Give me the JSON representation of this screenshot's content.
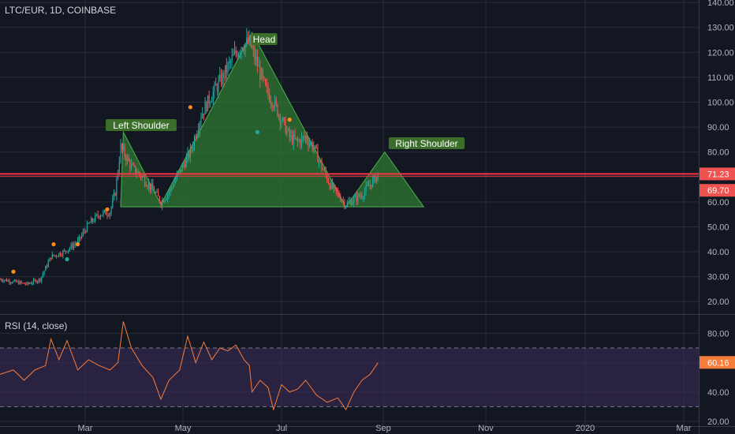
{
  "header": {
    "symbol_line": "LTC/EUR, 1D, COINBASE"
  },
  "rsi_panel": {
    "title": "RSI (14, close)"
  },
  "annotations": {
    "head": "Head",
    "left_shoulder": "Left Shoulder",
    "right_shoulder": "Right Shoulder"
  },
  "price_badges": {
    "resistance": "71.23",
    "last": "69.70"
  },
  "rsi_badge": "60.16",
  "colors": {
    "background": "#131722",
    "grid": "#2a2e39",
    "up": "#26a69a",
    "down": "#ef5350",
    "pattern_fill": "#2f7d32",
    "resistance_line": "#f23645",
    "rsi_line": "#f57c3a",
    "rsi_band": "#3b2a57",
    "label_bg": "#3a6e2a",
    "marker_orange": "#ff8c1a",
    "marker_teal": "#26a69a"
  },
  "chart_data": [
    {
      "type": "candlestick",
      "title": "LTC/EUR, 1D, COINBASE",
      "x_ticks": [
        "Mar",
        "May",
        "Jul",
        "Sep",
        "Nov",
        "2020",
        "Mar"
      ],
      "y_ticks": [
        "140.00",
        "130.00",
        "120.00",
        "110.00",
        "100.00",
        "90.00",
        "80.00",
        "70.00",
        "60.00",
        "50.00",
        "40.00",
        "30.00",
        "20.00"
      ],
      "ylim": [
        15,
        141
      ],
      "grid": true,
      "resistance_level": 71.23,
      "last_price": 69.7,
      "trend": [
        {
          "day": 0,
          "v": 29
        },
        {
          "day": 20,
          "v": 27
        },
        {
          "day": 30,
          "v": 29
        },
        {
          "day": 38,
          "v": 38
        },
        {
          "day": 48,
          "v": 40
        },
        {
          "day": 58,
          "v": 44
        },
        {
          "day": 66,
          "v": 51
        },
        {
          "day": 74,
          "v": 55
        },
        {
          "day": 82,
          "v": 56
        },
        {
          "day": 86,
          "v": 64
        },
        {
          "day": 90,
          "v": 82
        },
        {
          "day": 98,
          "v": 74
        },
        {
          "day": 106,
          "v": 70
        },
        {
          "day": 114,
          "v": 65
        },
        {
          "day": 120,
          "v": 60
        },
        {
          "day": 126,
          "v": 64
        },
        {
          "day": 134,
          "v": 72
        },
        {
          "day": 142,
          "v": 80
        },
        {
          "day": 150,
          "v": 95
        },
        {
          "day": 158,
          "v": 103
        },
        {
          "day": 166,
          "v": 110
        },
        {
          "day": 174,
          "v": 118
        },
        {
          "day": 180,
          "v": 123
        },
        {
          "day": 186,
          "v": 124
        },
        {
          "day": 192,
          "v": 115
        },
        {
          "day": 198,
          "v": 105
        },
        {
          "day": 204,
          "v": 100
        },
        {
          "day": 210,
          "v": 93
        },
        {
          "day": 216,
          "v": 86
        },
        {
          "day": 222,
          "v": 84
        },
        {
          "day": 228,
          "v": 86
        },
        {
          "day": 234,
          "v": 82
        },
        {
          "day": 240,
          "v": 74
        },
        {
          "day": 246,
          "v": 67
        },
        {
          "day": 252,
          "v": 63
        },
        {
          "day": 258,
          "v": 59
        },
        {
          "day": 264,
          "v": 61
        },
        {
          "day": 270,
          "v": 63
        },
        {
          "day": 276,
          "v": 67
        },
        {
          "day": 282,
          "v": 71
        }
      ],
      "signal_markers": [
        {
          "day": 10,
          "v": 32,
          "kind": "sell"
        },
        {
          "day": 40,
          "v": 43,
          "kind": "sell"
        },
        {
          "day": 58,
          "v": 43,
          "kind": "sell"
        },
        {
          "day": 50,
          "v": 37,
          "kind": "buy"
        },
        {
          "day": 80,
          "v": 57,
          "kind": "sell"
        },
        {
          "day": 142,
          "v": 98,
          "kind": "sell"
        },
        {
          "day": 192,
          "v": 88,
          "kind": "buy"
        },
        {
          "day": 216,
          "v": 93,
          "kind": "sell"
        }
      ],
      "pattern": {
        "name": "Head and Shoulders",
        "points": [
          {
            "label": "start",
            "day": 90,
            "v": 58
          },
          {
            "label": "Left Shoulder",
            "day": 92,
            "v": 88
          },
          {
            "label": "trough",
            "day": 120,
            "v": 59
          },
          {
            "label": "Head",
            "day": 188,
            "v": 128
          },
          {
            "label": "trough",
            "day": 258,
            "v": 58
          },
          {
            "label": "Right Shoulder",
            "day": 287,
            "v": 80
          },
          {
            "label": "end",
            "day": 316,
            "v": 58
          }
        ]
      }
    },
    {
      "type": "line",
      "title": "RSI (14, close)",
      "y_ticks": [
        "80.00",
        "60.00",
        "40.00",
        "20.00"
      ],
      "ylim": [
        20,
        92
      ],
      "band": [
        30,
        70
      ],
      "last_value": 60.16,
      "series": [
        {
          "values": [
            {
              "day": 0,
              "v": 52
            },
            {
              "day": 10,
              "v": 55
            },
            {
              "day": 18,
              "v": 48
            },
            {
              "day": 26,
              "v": 55
            },
            {
              "day": 34,
              "v": 58
            },
            {
              "day": 38,
              "v": 76
            },
            {
              "day": 44,
              "v": 62
            },
            {
              "day": 50,
              "v": 75
            },
            {
              "day": 58,
              "v": 55
            },
            {
              "day": 66,
              "v": 62
            },
            {
              "day": 74,
              "v": 58
            },
            {
              "day": 82,
              "v": 55
            },
            {
              "day": 88,
              "v": 60
            },
            {
              "day": 92,
              "v": 88
            },
            {
              "day": 98,
              "v": 70
            },
            {
              "day": 106,
              "v": 58
            },
            {
              "day": 114,
              "v": 50
            },
            {
              "day": 120,
              "v": 35
            },
            {
              "day": 126,
              "v": 48
            },
            {
              "day": 134,
              "v": 55
            },
            {
              "day": 140,
              "v": 78
            },
            {
              "day": 146,
              "v": 60
            },
            {
              "day": 152,
              "v": 74
            },
            {
              "day": 158,
              "v": 62
            },
            {
              "day": 164,
              "v": 70
            },
            {
              "day": 170,
              "v": 68
            },
            {
              "day": 176,
              "v": 72
            },
            {
              "day": 182,
              "v": 62
            },
            {
              "day": 186,
              "v": 58
            },
            {
              "day": 188,
              "v": 40
            },
            {
              "day": 194,
              "v": 48
            },
            {
              "day": 200,
              "v": 43
            },
            {
              "day": 204,
              "v": 28
            },
            {
              "day": 210,
              "v": 45
            },
            {
              "day": 216,
              "v": 40
            },
            {
              "day": 222,
              "v": 42
            },
            {
              "day": 228,
              "v": 48
            },
            {
              "day": 236,
              "v": 38
            },
            {
              "day": 244,
              "v": 33
            },
            {
              "day": 252,
              "v": 36
            },
            {
              "day": 258,
              "v": 28
            },
            {
              "day": 264,
              "v": 40
            },
            {
              "day": 270,
              "v": 48
            },
            {
              "day": 276,
              "v": 52
            },
            {
              "day": 282,
              "v": 60
            }
          ]
        }
      ]
    }
  ]
}
